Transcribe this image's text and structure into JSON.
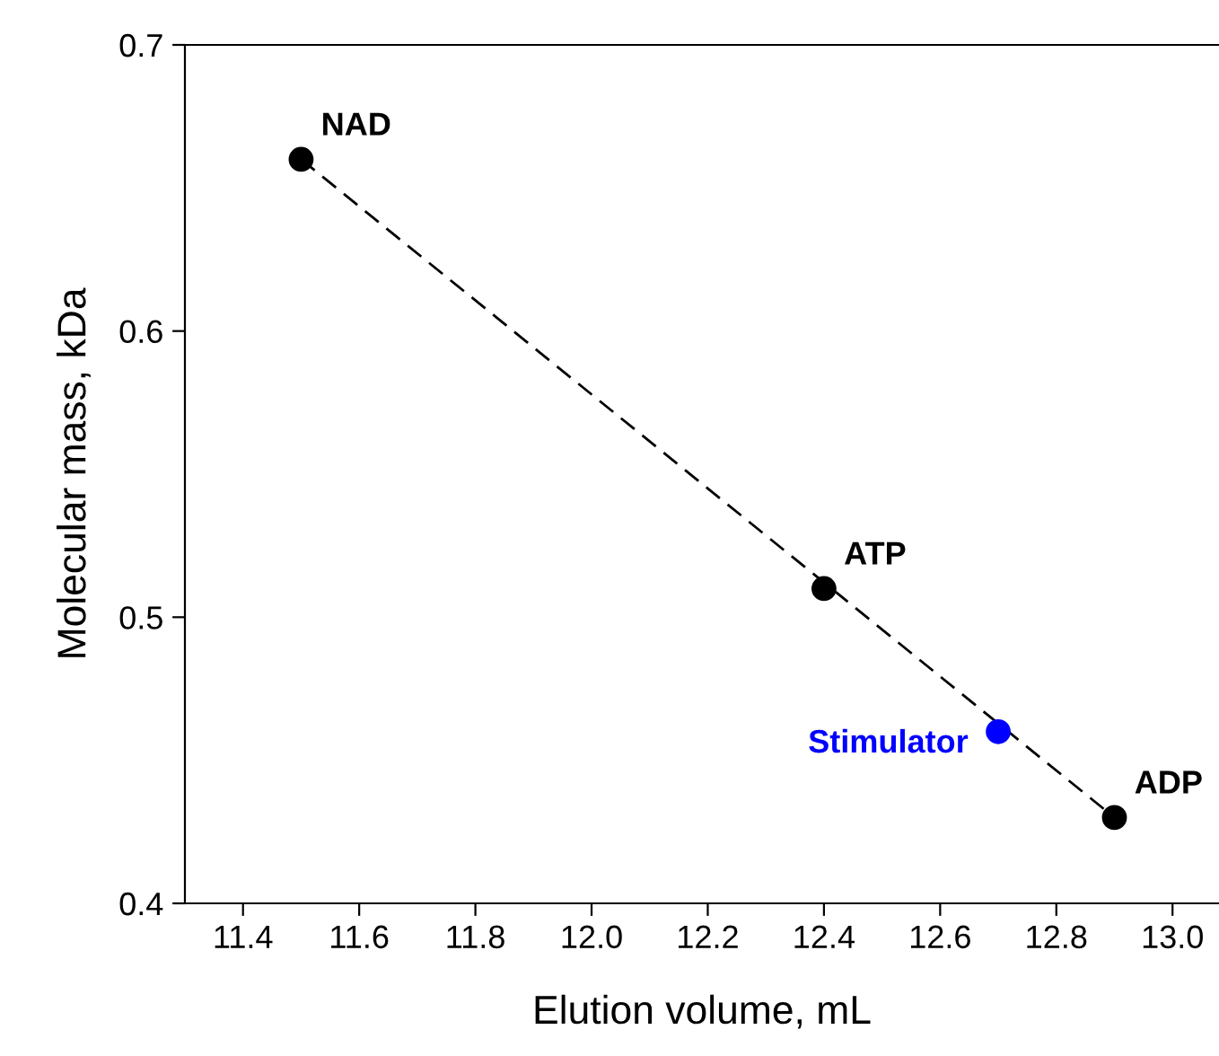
{
  "chart_data": {
    "type": "scatter",
    "xlabel": "Elution volume, mL",
    "ylabel": "Molecular mass, kDa",
    "xlim": [
      11.3,
      13.08
    ],
    "xticks": [
      {
        "value": 11.4,
        "label": "11.4"
      },
      {
        "value": 11.6,
        "label": "11.6"
      },
      {
        "value": 11.8,
        "label": "11.8"
      },
      {
        "value": 12.0,
        "label": "12.0"
      },
      {
        "value": 12.2,
        "label": "12.2"
      },
      {
        "value": 12.4,
        "label": "12.4"
      },
      {
        "value": 12.6,
        "label": "12.6"
      },
      {
        "value": 12.8,
        "label": "12.8"
      },
      {
        "value": 13.0,
        "label": "13.0"
      }
    ],
    "ylim": [
      0.4,
      0.7
    ],
    "yticks": [
      {
        "value": 0.4,
        "label": "0.4"
      },
      {
        "value": 0.5,
        "label": "0.5"
      },
      {
        "value": 0.6,
        "label": "0.6"
      },
      {
        "value": 0.7,
        "label": "0.7"
      }
    ],
    "grid": false,
    "legend": false,
    "series": [
      {
        "type": "line",
        "line_style": "dashed",
        "color": "#000000",
        "x": [
          11.5,
          12.9
        ],
        "values": [
          0.66,
          0.43
        ]
      },
      {
        "marker": "circle",
        "color": "#000000",
        "x": [
          11.5,
          12.4,
          12.9
        ],
        "values": [
          0.66,
          0.51,
          0.43
        ]
      },
      {
        "marker": "circle",
        "color": "#0000ff",
        "x": [
          12.7
        ],
        "values": [
          0.46
        ]
      }
    ],
    "annotations": [
      {
        "text": "NAD",
        "x": 11.5,
        "y": 0.66
      },
      {
        "text": "ATP",
        "x": 12.4,
        "y": 0.51
      },
      {
        "text": "Stimulator",
        "x": 12.7,
        "y": 0.46
      },
      {
        "text": "ADP",
        "x": 12.9,
        "y": 0.43
      }
    ]
  }
}
